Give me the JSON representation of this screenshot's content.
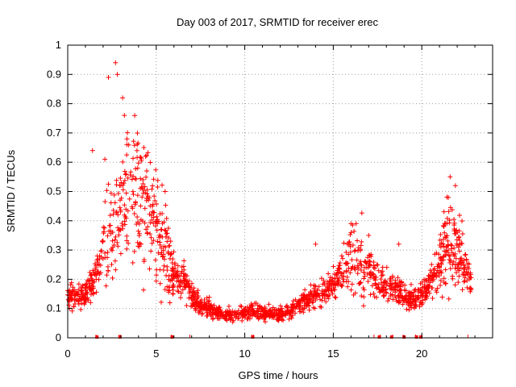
{
  "chart_data": {
    "type": "scatter",
    "title": "Day 003 of 2017, SRMTID for receiver erec",
    "xlabel": "GPS time / hours",
    "ylabel": "SRMTID / TECUs",
    "xlim": [
      0,
      24
    ],
    "ylim": [
      0,
      1
    ],
    "xticks": [
      0,
      5,
      10,
      15,
      20
    ],
    "yticks": [
      0,
      0.1,
      0.2,
      0.3,
      0.4,
      0.5,
      0.6,
      0.7,
      0.8,
      0.9,
      1
    ],
    "grid": true,
    "marker": "plus",
    "color": "#ff0000",
    "gap_markers_x": [
      1.65,
      2.95,
      5.9,
      10.45,
      17.6,
      18.3,
      19.0,
      19.7,
      19.95
    ],
    "tick_markers_x": [
      1.6,
      2.9,
      3.0,
      5.85,
      6.9,
      10.4,
      10.5,
      17.3,
      17.65,
      18.35,
      18.95,
      19.65,
      20.0,
      22.6
    ],
    "series": [
      {
        "name": "SRMTID",
        "profile": [
          [
            0.0,
            0.15
          ],
          [
            0.5,
            0.13
          ],
          [
            1.0,
            0.15
          ],
          [
            1.5,
            0.2
          ],
          [
            2.0,
            0.3
          ],
          [
            2.5,
            0.38
          ],
          [
            3.0,
            0.45
          ],
          [
            3.5,
            0.47
          ],
          [
            4.0,
            0.47
          ],
          [
            4.5,
            0.42
          ],
          [
            5.0,
            0.38
          ],
          [
            5.5,
            0.3
          ],
          [
            6.0,
            0.22
          ],
          [
            6.5,
            0.19
          ],
          [
            7.0,
            0.15
          ],
          [
            7.5,
            0.11
          ],
          [
            8.0,
            0.1
          ],
          [
            8.5,
            0.085
          ],
          [
            9.0,
            0.08
          ],
          [
            9.5,
            0.075
          ],
          [
            10.0,
            0.085
          ],
          [
            10.5,
            0.09
          ],
          [
            11.0,
            0.085
          ],
          [
            11.5,
            0.08
          ],
          [
            12.0,
            0.08
          ],
          [
            12.5,
            0.09
          ],
          [
            13.0,
            0.11
          ],
          [
            13.5,
            0.13
          ],
          [
            14.0,
            0.15
          ],
          [
            14.5,
            0.16
          ],
          [
            15.0,
            0.18
          ],
          [
            15.5,
            0.22
          ],
          [
            16.0,
            0.27
          ],
          [
            16.5,
            0.26
          ],
          [
            17.0,
            0.24
          ],
          [
            17.5,
            0.2
          ],
          [
            18.0,
            0.18
          ],
          [
            18.5,
            0.17
          ],
          [
            19.0,
            0.15
          ],
          [
            19.5,
            0.13
          ],
          [
            20.0,
            0.15
          ],
          [
            20.5,
            0.2
          ],
          [
            21.0,
            0.25
          ],
          [
            21.5,
            0.35
          ],
          [
            22.0,
            0.3
          ],
          [
            22.5,
            0.22
          ],
          [
            22.8,
            0.19
          ]
        ],
        "peaks": [
          [
            2.3,
            0.89
          ],
          [
            2.7,
            0.94
          ],
          [
            2.8,
            0.9
          ],
          [
            3.1,
            0.82
          ],
          [
            3.2,
            0.76
          ],
          [
            1.4,
            0.64
          ],
          [
            2.1,
            0.61
          ],
          [
            4.4,
            0.62
          ],
          [
            4.3,
            0.65
          ],
          [
            5.5,
            0.5
          ],
          [
            21.6,
            0.55
          ],
          [
            21.9,
            0.52
          ],
          [
            16.0,
            0.39
          ],
          [
            17.0,
            0.35
          ],
          [
            14.0,
            0.32
          ],
          [
            18.7,
            0.32
          ]
        ],
        "x_range": [
          0.0,
          22.8
        ],
        "n_points": 1700
      }
    ]
  }
}
